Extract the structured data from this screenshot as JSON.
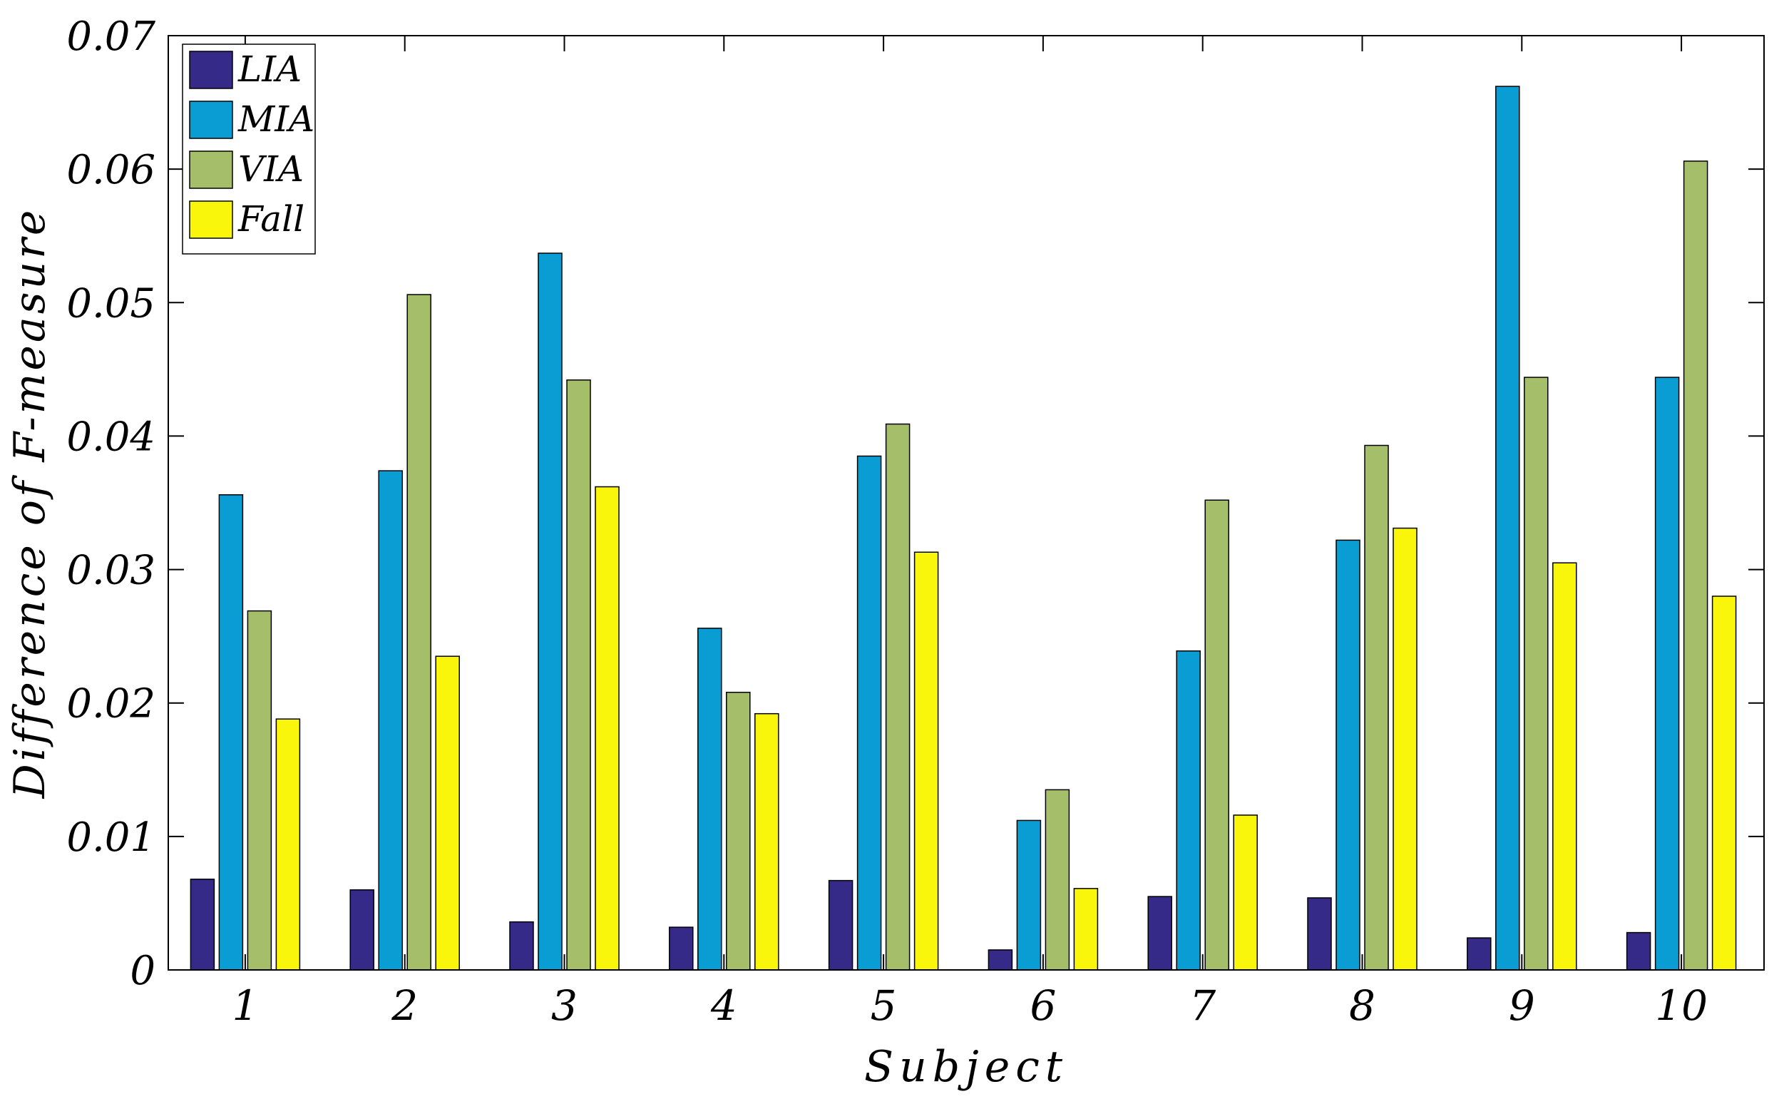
{
  "chart_data": {
    "type": "bar",
    "title": "",
    "xlabel": "Subject",
    "ylabel": "Difference of F-measure",
    "categories": [
      "1",
      "2",
      "3",
      "4",
      "5",
      "6",
      "7",
      "8",
      "9",
      "10"
    ],
    "ylim": [
      0,
      0.07
    ],
    "yticks": [
      "0",
      "0.01",
      "0.02",
      "0.03",
      "0.04",
      "0.05",
      "0.06",
      "0.07"
    ],
    "grid": false,
    "legend_position": "top-left",
    "series": [
      {
        "name": "LIA",
        "color": "#352A87",
        "values": [
          0.0068,
          0.006,
          0.0036,
          0.0032,
          0.0067,
          0.0015,
          0.0055,
          0.0054,
          0.0024,
          0.0028
        ]
      },
      {
        "name": "MIA",
        "color": "#0A9DD3",
        "values": [
          0.0356,
          0.0374,
          0.0537,
          0.0256,
          0.0385,
          0.0112,
          0.0239,
          0.0322,
          0.0662,
          0.0444
        ]
      },
      {
        "name": "VIA",
        "color": "#A5BE6A",
        "values": [
          0.0269,
          0.0506,
          0.0442,
          0.0208,
          0.0409,
          0.0135,
          0.0352,
          0.0393,
          0.0444,
          0.0606
        ]
      },
      {
        "name": "Fall",
        "color": "#F9F60C",
        "values": [
          0.0188,
          0.0235,
          0.0362,
          0.0192,
          0.0313,
          0.0061,
          0.0116,
          0.0331,
          0.0305,
          0.028
        ]
      }
    ]
  }
}
